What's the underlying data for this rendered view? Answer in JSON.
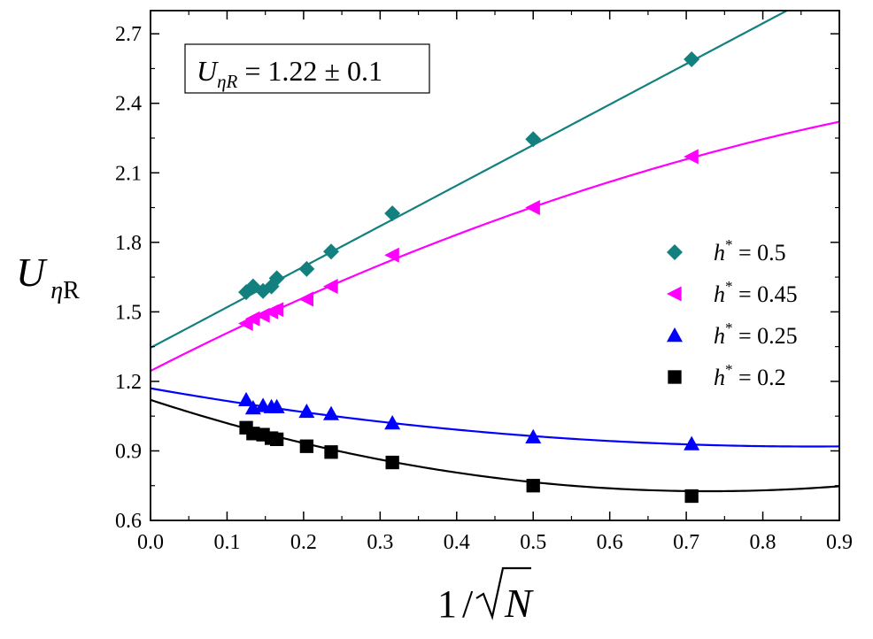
{
  "chart_data": {
    "type": "scatter",
    "xlabel": "1/√N",
    "ylabel": {
      "main": "U",
      "subscript_italic": "η",
      "subscript_roman": "R"
    },
    "xlim": [
      0.0,
      0.9
    ],
    "ylim": [
      0.6,
      2.8
    ],
    "x_ticks": [
      "0.0",
      "0.1",
      "0.2",
      "0.3",
      "0.4",
      "0.5",
      "0.6",
      "0.7",
      "0.8",
      "0.9"
    ],
    "y_ticks": [
      "0.6",
      "0.9",
      "1.2",
      "1.5",
      "1.8",
      "2.1",
      "2.4",
      "2.7"
    ],
    "annotation": {
      "main": "U",
      "subscript": "ηR",
      "text": " = 1.22 ± 0.1"
    },
    "legend": {
      "placement": "right"
    },
    "series": [
      {
        "name": "h* = 0.5",
        "legend_main": "h",
        "legend_sup": "*",
        "legend_value": " = 0.5",
        "marker": "diamond",
        "color": "#138080",
        "x": [
          0.125,
          0.134,
          0.147,
          0.158,
          0.165,
          0.204,
          0.236,
          0.316,
          0.5,
          0.707
        ],
        "y": [
          1.585,
          1.61,
          1.59,
          1.61,
          1.645,
          1.685,
          1.76,
          1.925,
          2.245,
          2.59
        ],
        "fit": [
          1.345,
          1.75,
          0.0
        ]
      },
      {
        "name": "h* = 0.45",
        "legend_main": "h",
        "legend_sup": "*",
        "legend_value": " = 0.45",
        "marker": "triangle-left",
        "color": "#ff00ff",
        "x": [
          0.125,
          0.134,
          0.147,
          0.158,
          0.165,
          0.204,
          0.236,
          0.316,
          0.5,
          0.707
        ],
        "y": [
          1.45,
          1.47,
          1.485,
          1.5,
          1.51,
          1.555,
          1.61,
          1.745,
          1.95,
          2.17
        ],
        "fit": [
          1.245,
          1.69,
          -0.55
        ]
      },
      {
        "name": "h* = 0.25",
        "legend_main": "h",
        "legend_sup": "*",
        "legend_value": " = 0.25",
        "marker": "triangle-up",
        "color": "#0000ff",
        "x": [
          0.125,
          0.134,
          0.147,
          0.158,
          0.165,
          0.204,
          0.236,
          0.316,
          0.5,
          0.707
        ],
        "y": [
          1.12,
          1.085,
          1.095,
          1.09,
          1.09,
          1.07,
          1.06,
          1.02,
          0.96,
          0.93
        ],
        "fit": [
          1.17,
          -0.58,
          0.335
        ]
      },
      {
        "name": "h* = 0.2",
        "legend_main": "h",
        "legend_sup": "*",
        "legend_value": " = 0.2",
        "marker": "square",
        "color": "#000000",
        "x": [
          0.125,
          0.134,
          0.147,
          0.158,
          0.165,
          0.204,
          0.236,
          0.316,
          0.5,
          0.707
        ],
        "y": [
          1.0,
          0.975,
          0.97,
          0.955,
          0.95,
          0.92,
          0.895,
          0.85,
          0.75,
          0.705
        ],
        "fit": [
          1.12,
          -1.08,
          0.74
        ]
      }
    ]
  }
}
